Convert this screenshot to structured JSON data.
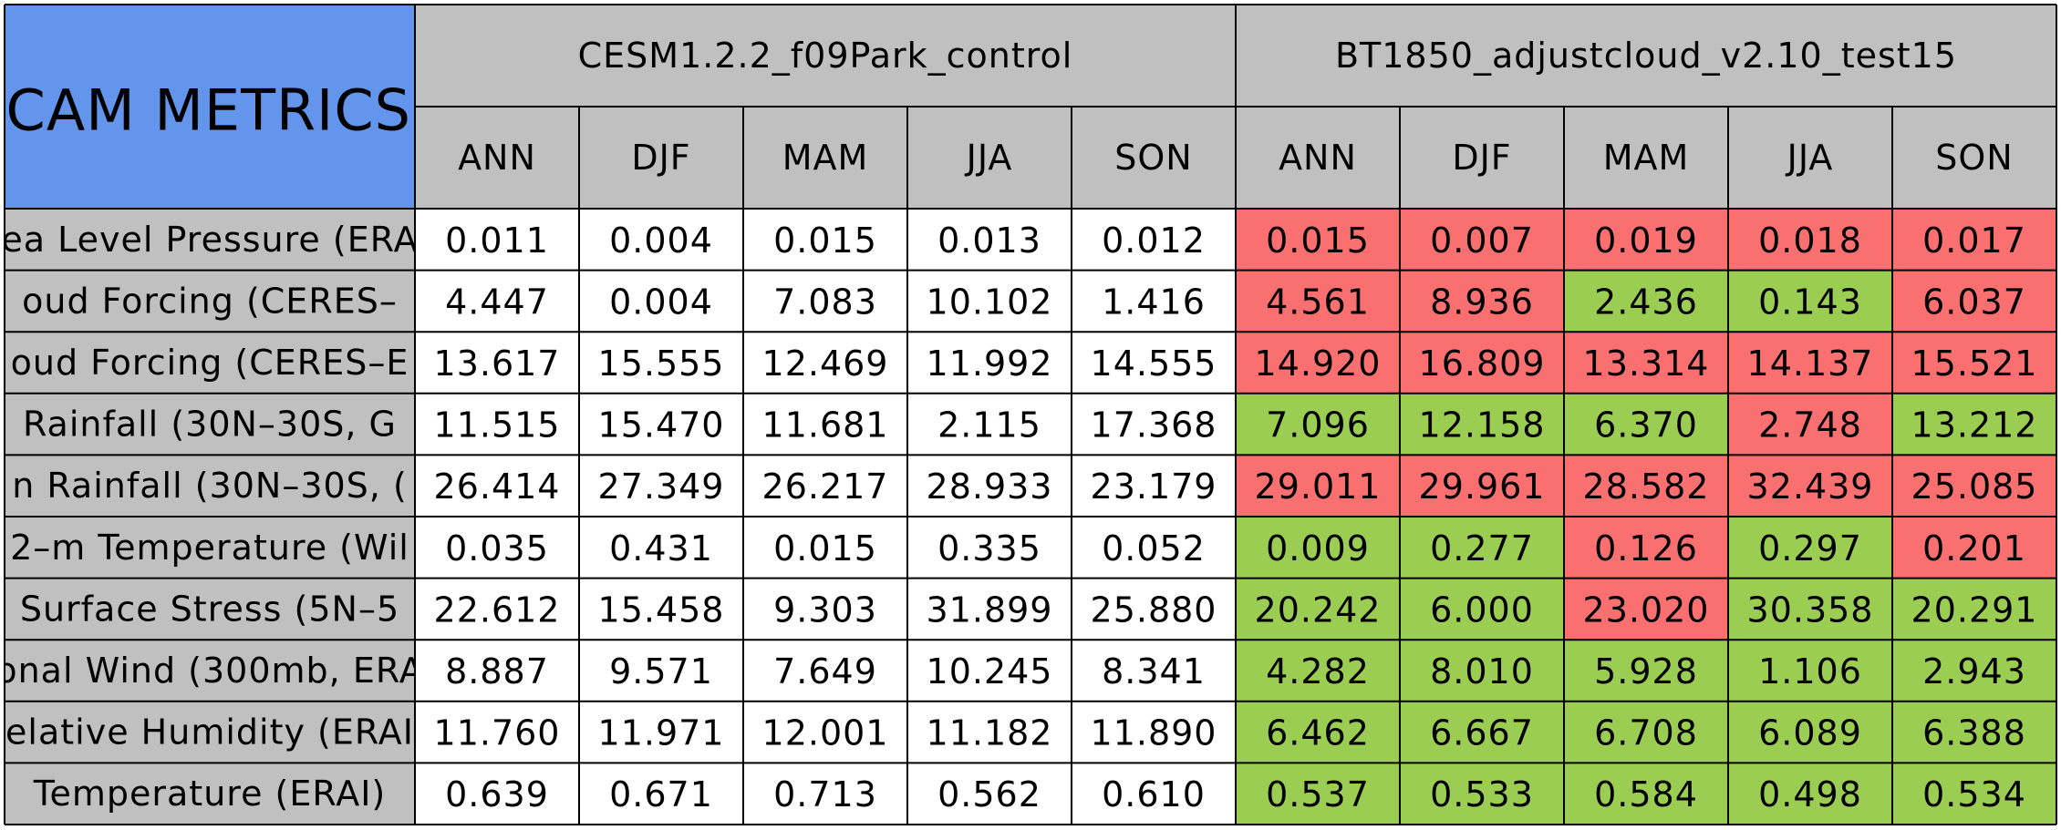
{
  "chart_data": {
    "type": "table",
    "title": "CAM METRICS",
    "cases": [
      {
        "name": "CESM1.2.2_f09Park_control"
      },
      {
        "name": "BT1850_adjustcloud_v2.10_test15"
      }
    ],
    "seasons": [
      "ANN",
      "DJF",
      "MAM",
      "JJA",
      "SON"
    ],
    "rows": [
      {
        "label": "ea Level Pressure (ERA",
        "control": [
          "0.011",
          "0.004",
          "0.015",
          "0.013",
          "0.012"
        ],
        "test": [
          "0.015",
          "0.007",
          "0.019",
          "0.018",
          "0.017"
        ],
        "test_status": [
          "worse",
          "worse",
          "worse",
          "worse",
          "worse"
        ]
      },
      {
        "label": "oud Forcing (CERES–",
        "control": [
          "4.447",
          "0.004",
          "7.083",
          "10.102",
          "1.416"
        ],
        "test": [
          "4.561",
          "8.936",
          "2.436",
          "0.143",
          "6.037"
        ],
        "test_status": [
          "worse",
          "worse",
          "better",
          "better",
          "worse"
        ]
      },
      {
        "label": "oud Forcing (CERES–E",
        "control": [
          "13.617",
          "15.555",
          "12.469",
          "11.992",
          "14.555"
        ],
        "test": [
          "14.920",
          "16.809",
          "13.314",
          "14.137",
          "15.521"
        ],
        "test_status": [
          "worse",
          "worse",
          "worse",
          "worse",
          "worse"
        ]
      },
      {
        "label": " Rainfall (30N–30S, G",
        "control": [
          "11.515",
          "15.470",
          "11.681",
          "2.115",
          "17.368"
        ],
        "test": [
          "7.096",
          "12.158",
          "6.370",
          "2.748",
          "13.212"
        ],
        "test_status": [
          "better",
          "better",
          "better",
          "worse",
          "better"
        ]
      },
      {
        "label": "n Rainfall (30N–30S, (",
        "control": [
          "26.414",
          "27.349",
          "26.217",
          "28.933",
          "23.179"
        ],
        "test": [
          "29.011",
          "29.961",
          "28.582",
          "32.439",
          "25.085"
        ],
        "test_status": [
          "worse",
          "worse",
          "worse",
          "worse",
          "worse"
        ]
      },
      {
        "label": "2–m Temperature (Wil",
        "control": [
          "0.035",
          "0.431",
          "0.015",
          "0.335",
          "0.052"
        ],
        "test": [
          "0.009",
          "0.277",
          "0.126",
          "0.297",
          "0.201"
        ],
        "test_status": [
          "better",
          "better",
          "worse",
          "better",
          "worse"
        ]
      },
      {
        "label": " Surface Stress (5N–5",
        "control": [
          "22.612",
          "15.458",
          "9.303",
          "31.899",
          "25.880"
        ],
        "test": [
          "20.242",
          "6.000",
          "23.020",
          "30.358",
          "20.291"
        ],
        "test_status": [
          "better",
          "better",
          "worse",
          "better",
          "better"
        ]
      },
      {
        "label": "onal Wind (300mb, ERA",
        "control": [
          "8.887",
          "9.571",
          "7.649",
          "10.245",
          "8.341"
        ],
        "test": [
          "4.282",
          "8.010",
          "5.928",
          "1.106",
          "2.943"
        ],
        "test_status": [
          "better",
          "better",
          "better",
          "better",
          "better"
        ]
      },
      {
        "label": "elative Humidity (ERAI",
        "control": [
          "11.760",
          "11.971",
          "12.001",
          "11.182",
          "11.890"
        ],
        "test": [
          "6.462",
          "6.667",
          "6.708",
          "6.089",
          "6.388"
        ],
        "test_status": [
          "better",
          "better",
          "better",
          "better",
          "better"
        ]
      },
      {
        "label": " Temperature (ERAI)",
        "control": [
          "0.639",
          "0.671",
          "0.713",
          "0.562",
          "0.610"
        ],
        "test": [
          "0.537",
          "0.533",
          "0.584",
          "0.498",
          "0.534"
        ],
        "test_status": [
          "better",
          "better",
          "better",
          "better",
          "better"
        ]
      }
    ],
    "colors": {
      "title_bg": "#6495ed",
      "header_bg": "#c0c0c0",
      "label_bg": "#c0c0c0",
      "control_bg": "#ffffff",
      "better": "#9acd51",
      "worse": "#fa7070",
      "border": "#000000"
    }
  }
}
